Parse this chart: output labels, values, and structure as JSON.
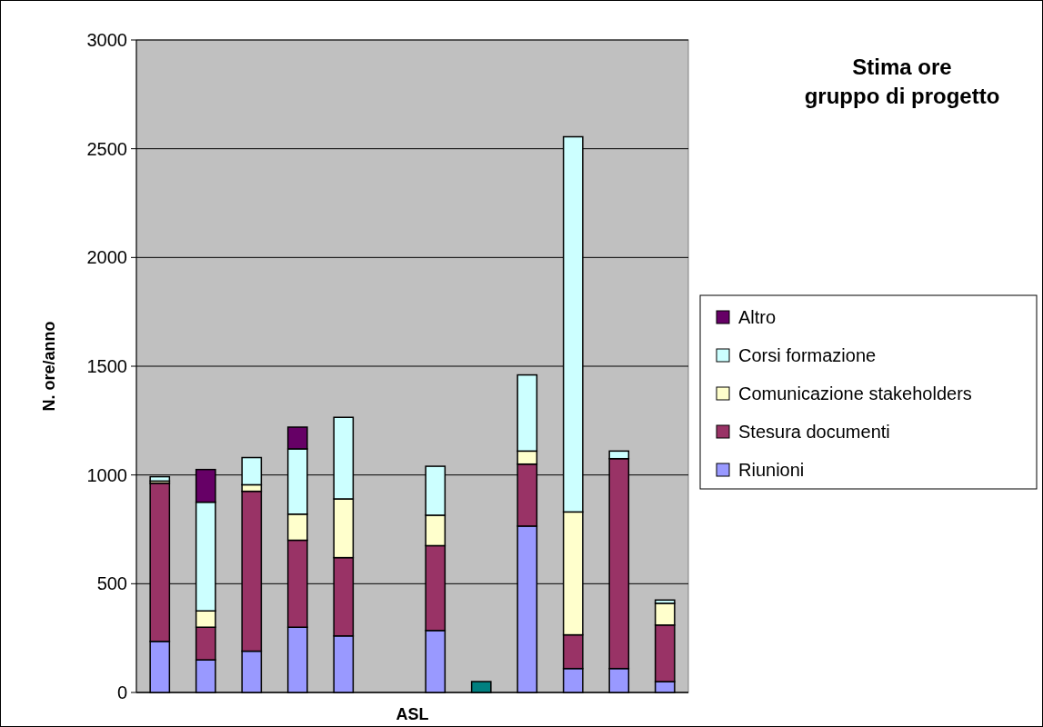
{
  "chart_data": {
    "type": "bar",
    "title": "Stima ore\ngruppo di progetto",
    "xlabel": "ASL",
    "ylabel": "N. ore/anno",
    "stacked": true,
    "categories": [
      null,
      null,
      null,
      null,
      null,
      null,
      null,
      null,
      null,
      null,
      null,
      null
    ],
    "series": [
      {
        "name": "Riunioni",
        "color": "#9999ff",
        "values": [
          235,
          150,
          190,
          300,
          260,
          null,
          285,
          null,
          765,
          110,
          110,
          50
        ]
      },
      {
        "name": "Stesura documenti",
        "color": "#993366",
        "values": [
          727,
          150,
          735,
          400,
          360,
          null,
          390,
          null,
          285,
          155,
          965,
          260
        ]
      },
      {
        "name": "Comunicazione stakeholders",
        "color": "#ffffcc",
        "values": [
          10,
          75,
          30,
          120,
          270,
          null,
          140,
          null,
          60,
          565,
          0,
          100
        ]
      },
      {
        "name": "Corsi formazione",
        "color": "#ccffff",
        "values": [
          20,
          500,
          125,
          300,
          375,
          null,
          225,
          null,
          350,
          1725,
          35,
          15
        ]
      },
      {
        "name": "Altro",
        "color": "#660066",
        "values": [
          null,
          150,
          null,
          100,
          null,
          null,
          null,
          null,
          null,
          null,
          null,
          null
        ]
      },
      {
        "color": "#008080",
        "values": [
          null,
          null,
          null,
          null,
          null,
          null,
          null,
          50,
          null,
          null,
          null,
          null
        ]
      }
    ],
    "ylim": [
      0,
      3000
    ],
    "yticks": [
      0,
      500,
      1000,
      1500,
      2000,
      2500,
      3000
    ],
    "grid": "y",
    "legend": "right"
  }
}
